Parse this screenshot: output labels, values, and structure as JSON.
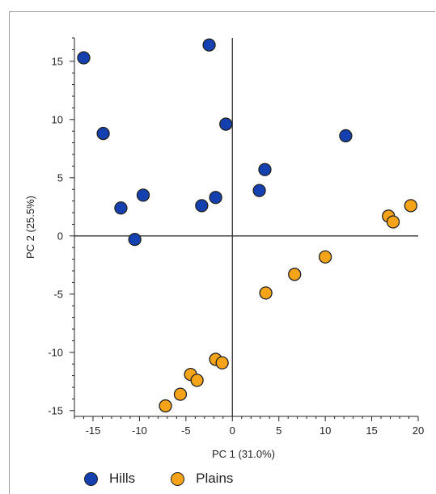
{
  "chart_data": {
    "type": "scatter",
    "title": "",
    "xlabel": "PC 1 (31.0%)",
    "ylabel": "PC 2 (25.5%)",
    "xlim": [
      -17,
      20
    ],
    "ylim": [
      -15.5,
      17
    ],
    "xticks": [
      -15,
      -10,
      -5,
      0,
      5,
      10,
      15,
      20
    ],
    "yticks": [
      -15,
      -10,
      -5,
      0,
      5,
      10,
      15
    ],
    "grid": false,
    "zero_lines": true,
    "legend_position": "bottom",
    "series": [
      {
        "name": "Hills",
        "color": "#1540b0",
        "points": [
          [
            -16.0,
            15.3
          ],
          [
            -2.5,
            16.4
          ],
          [
            -13.9,
            8.8
          ],
          [
            -0.7,
            9.6
          ],
          [
            12.2,
            8.6
          ],
          [
            3.5,
            5.7
          ],
          [
            -9.6,
            3.5
          ],
          [
            2.9,
            3.9
          ],
          [
            -1.8,
            3.3
          ],
          [
            -3.3,
            2.6
          ],
          [
            -12.0,
            2.4
          ],
          [
            -10.5,
            -0.3
          ]
        ]
      },
      {
        "name": "Plains",
        "color": "#f5a319",
        "points": [
          [
            19.2,
            2.6
          ],
          [
            16.8,
            1.7
          ],
          [
            17.3,
            1.2
          ],
          [
            10.0,
            -1.8
          ],
          [
            6.7,
            -3.3
          ],
          [
            3.6,
            -4.9
          ],
          [
            -1.8,
            -10.6
          ],
          [
            -1.1,
            -10.9
          ],
          [
            -4.5,
            -11.9
          ],
          [
            -3.8,
            -12.4
          ],
          [
            -5.6,
            -13.6
          ],
          [
            -7.2,
            -14.6
          ]
        ]
      }
    ]
  }
}
